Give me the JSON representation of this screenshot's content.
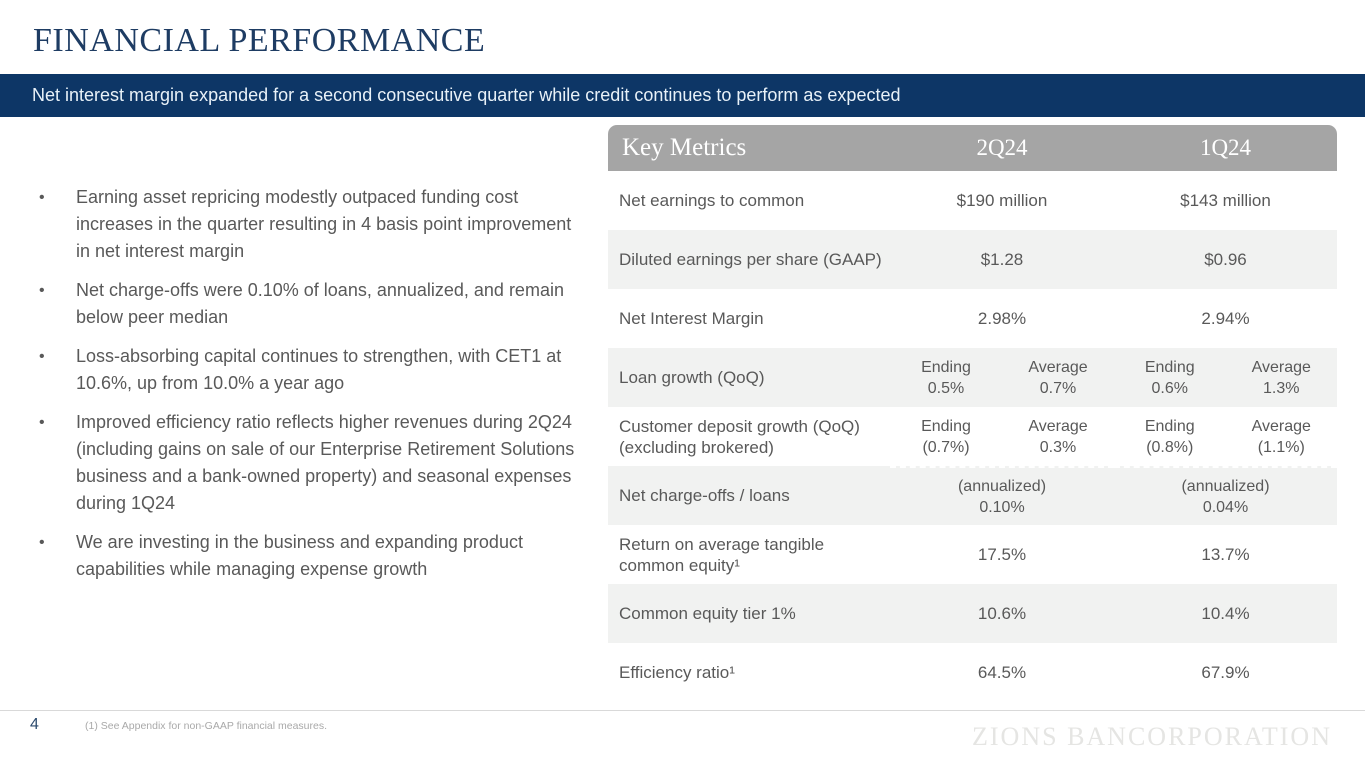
{
  "slide": {
    "title": "FINANCIAL PERFORMANCE",
    "banner_text": "Net interest margin expanded for a second consecutive quarter while credit continues to perform as expected"
  },
  "bullets": [
    "Earning asset repricing modestly outpaced funding cost increases in the quarter resulting in 4 basis point improvement in net interest margin",
    "Net charge-offs were 0.10% of loans, annualized, and remain below peer median",
    "Loss-absorbing capital continues to strengthen, with CET1 at 10.6%, up from 10.0% a year ago",
    "Improved efficiency ratio reflects higher revenues during 2Q24 (including gains on sale of our Enterprise Retirement Solutions business and a bank-owned property) and seasonal expenses during 1Q24",
    "We are investing in the business and expanding product capabilities while managing expense growth"
  ],
  "table": {
    "header": {
      "title": "Key Metrics",
      "col_2q24": "2Q24",
      "col_1q24": "1Q24"
    },
    "rows": [
      {
        "label": "Net earnings to common",
        "q2": "$190 million",
        "q1": "$143 million"
      },
      {
        "label": "Diluted earnings per share (GAAP)",
        "q2": "$1.28",
        "q1": "$0.96"
      },
      {
        "label": "Net Interest Margin",
        "q2": "2.98%",
        "q1": "2.94%"
      },
      {
        "label": "Loan growth (QoQ)",
        "cells": [
          {
            "t": "Ending",
            "v": "0.5%"
          },
          {
            "t": "Average",
            "v": "0.7%"
          },
          {
            "t": "Ending",
            "v": "0.6%"
          },
          {
            "t": "Average",
            "v": "1.3%"
          }
        ]
      },
      {
        "label": "Customer deposit growth (QoQ) (excluding brokered)",
        "cells": [
          {
            "t": "Ending",
            "v": "(0.7%)"
          },
          {
            "t": "Average",
            "v": "0.3%"
          },
          {
            "t": "Ending",
            "v": "(0.8%)"
          },
          {
            "t": "Average",
            "v": "(1.1%)"
          }
        ]
      },
      {
        "label": "Net charge-offs / loans",
        "q2_note": "(annualized)",
        "q2": "0.10%",
        "q1_note": "(annualized)",
        "q1": "0.04%"
      },
      {
        "label": "Return on average tangible common equity¹",
        "q2": "17.5%",
        "q1": "13.7%"
      },
      {
        "label": "Common equity tier 1%",
        "q2": "10.6%",
        "q1": "10.4%"
      },
      {
        "label": "Efficiency ratio¹",
        "q2": "64.5%",
        "q1": "67.9%"
      }
    ]
  },
  "footer": {
    "page_number": "4",
    "footnote": "(1) See Appendix for non-GAAP financial measures.",
    "watermark": "ZIONS BANCORPORATION"
  },
  "colors": {
    "banner_navy": "#0d3666",
    "title_navy": "#1e3c63",
    "table_header_gray": "#a5a5a5",
    "row_alt_gray": "#f1f2f1",
    "body_text_gray": "#595959"
  }
}
